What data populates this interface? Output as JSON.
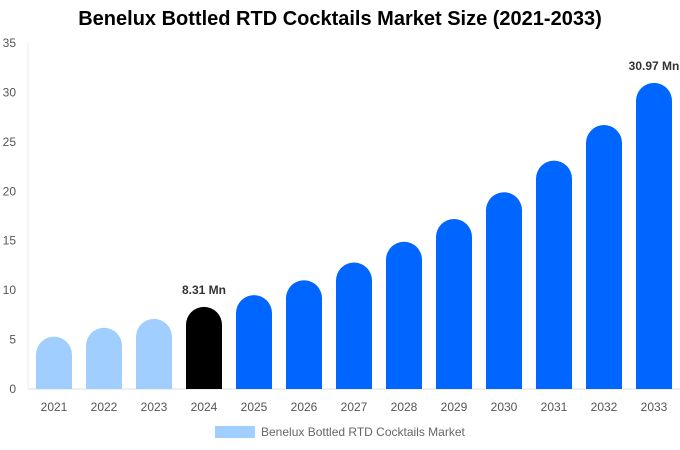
{
  "chart_data": {
    "type": "bar",
    "title": "Benelux Bottled RTD Cocktails Market Size (2021-2033)",
    "categories": [
      "2021",
      "2022",
      "2023",
      "2024",
      "2025",
      "2026",
      "2027",
      "2028",
      "2029",
      "2030",
      "2031",
      "2032",
      "2033"
    ],
    "series": [
      {
        "name": "Benelux Bottled RTD Cocktails Market",
        "values": [
          5.3,
          6.2,
          7.1,
          8.31,
          9.5,
          11.0,
          12.8,
          14.9,
          17.2,
          19.9,
          23.1,
          26.7,
          30.97
        ]
      }
    ],
    "data_labels": [
      {
        "index": 3,
        "text": "8.31 Mn"
      },
      {
        "index": 12,
        "text": "30.97 Mn"
      }
    ],
    "bar_colors": [
      "#a0cfff",
      "#a0cfff",
      "#a0cfff",
      "#000000",
      "#0066ff",
      "#0066ff",
      "#0066ff",
      "#0066ff",
      "#0066ff",
      "#0066ff",
      "#0066ff",
      "#0066ff",
      "#0066ff"
    ],
    "legend_color": "#a0cfff",
    "yticks": [
      0,
      5,
      10,
      15,
      20,
      25,
      30,
      35
    ],
    "ylim": [
      0,
      35
    ],
    "xlabel": "",
    "ylabel": "",
    "grid": false,
    "legend_position": "bottom"
  }
}
